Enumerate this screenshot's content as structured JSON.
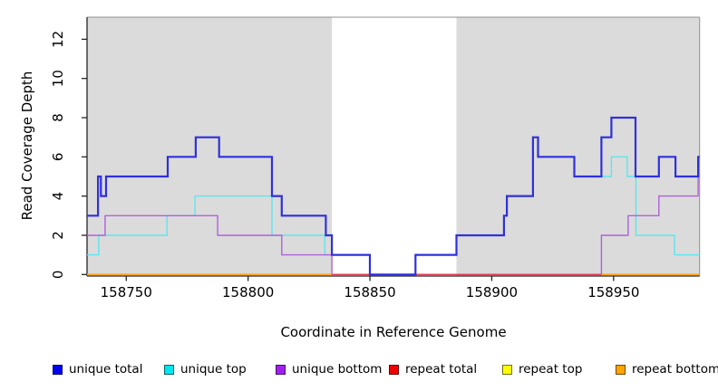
{
  "figure": {
    "x_title": "Coordinate in Reference Genome",
    "y_title": "Read Coverage Depth"
  },
  "chart_data": {
    "type": "line",
    "subtype": "step-after",
    "title": "",
    "xlabel": "Coordinate in Reference Genome",
    "ylabel": "Read Coverage Depth",
    "xlim": [
      158733.9,
      158985.3
    ],
    "ylim": [
      0,
      13.17
    ],
    "x_ticks": [
      158750,
      158800,
      158850,
      158900,
      158950
    ],
    "y_ticks": [
      0,
      2,
      4,
      6,
      8,
      10,
      12
    ],
    "grid": false,
    "legend_position": "bottom",
    "shade_color": "#DBDBDB",
    "shaded_regions": [
      {
        "x0": 158733.9,
        "x1": 158834.4
      },
      {
        "x0": 158885.5,
        "x1": 158985.3
      }
    ],
    "series": [
      {
        "name": "repeat top",
        "color": "#F2F20A",
        "width": 1.2,
        "segments": [
          [
            [
              158733.9,
              0
            ],
            [
              158985.3,
              0
            ]
          ]
        ]
      },
      {
        "name": "unique top",
        "color": "#5CE6EE",
        "width": 1.4,
        "segments": [
          [
            [
              158733.9,
              1
            ],
            [
              158738.7,
              2
            ],
            [
              158766.7,
              3
            ],
            [
              158778.2,
              4
            ],
            [
              158809.8,
              2
            ],
            [
              158831.5,
              1
            ],
            [
              158850.0,
              0
            ],
            [
              158868.7,
              1
            ],
            [
              158885.5,
              2
            ],
            [
              158905.0,
              3
            ],
            [
              158906.2,
              4
            ],
            [
              158916.9,
              7
            ],
            [
              158919.0,
              6
            ],
            [
              158933.9,
              5
            ],
            [
              158949.1,
              6
            ],
            [
              158955.6,
              5
            ],
            [
              158959.2,
              2
            ],
            [
              158975.0,
              1
            ],
            [
              158985.3,
              1
            ]
          ]
        ]
      },
      {
        "name": "unique bottom",
        "color": "#AE62DA",
        "width": 1.4,
        "segments": [
          [
            [
              158733.9,
              2
            ],
            [
              158741.3,
              3
            ],
            [
              158787.5,
              2
            ],
            [
              158813.8,
              1
            ],
            [
              158834.4,
              0
            ],
            [
              158945.0,
              2
            ],
            [
              158956.0,
              3
            ],
            [
              158968.6,
              4
            ],
            [
              158984.7,
              5
            ],
            [
              158985.3,
              5
            ]
          ]
        ]
      },
      {
        "name": "repeat bottom",
        "color": "#FFA318",
        "width": 1.8,
        "segments": [
          [
            [
              158733.9,
              0
            ],
            [
              158834.4,
              0
            ]
          ],
          [
            [
              158945.0,
              0
            ],
            [
              158985.3,
              0
            ]
          ]
        ]
      },
      {
        "name": "repeat total",
        "color": "#E04258",
        "width": 1.6,
        "segments": [
          [
            [
              158834.4,
              0
            ],
            [
              158945.0,
              0
            ]
          ]
        ]
      },
      {
        "name": "unique total",
        "color": "#3030DC",
        "width": 2.2,
        "segments": [
          [
            [
              158733.9,
              3
            ],
            [
              158738.4,
              5
            ],
            [
              158739.6,
              4
            ],
            [
              158741.7,
              5
            ],
            [
              158767.0,
              6
            ],
            [
              158778.5,
              7
            ],
            [
              158788.1,
              6
            ],
            [
              158809.8,
              4
            ],
            [
              158813.8,
              3
            ],
            [
              158831.9,
              2
            ],
            [
              158834.4,
              1
            ],
            [
              158850.0,
              0
            ],
            [
              158868.7,
              1
            ],
            [
              158885.5,
              2
            ],
            [
              158905.0,
              3
            ],
            [
              158906.2,
              4
            ],
            [
              158916.9,
              7
            ],
            [
              158919.0,
              6
            ],
            [
              158933.9,
              5
            ],
            [
              158945.0,
              7
            ],
            [
              158949.1,
              8
            ],
            [
              158959.0,
              5
            ],
            [
              158968.6,
              6
            ],
            [
              158975.4,
              5
            ],
            [
              158984.7,
              6
            ],
            [
              158985.3,
              6
            ]
          ]
        ]
      }
    ],
    "legend": [
      {
        "label": "unique total",
        "color": "#0000EE"
      },
      {
        "label": "unique top",
        "color": "#00E5EE"
      },
      {
        "label": "unique bottom",
        "color": "#A020F0"
      },
      {
        "label": "repeat total",
        "color": "#EE0000"
      },
      {
        "label": "repeat top",
        "color": "#FFFF00"
      },
      {
        "label": "repeat bottom",
        "color": "#FFA500"
      }
    ]
  }
}
